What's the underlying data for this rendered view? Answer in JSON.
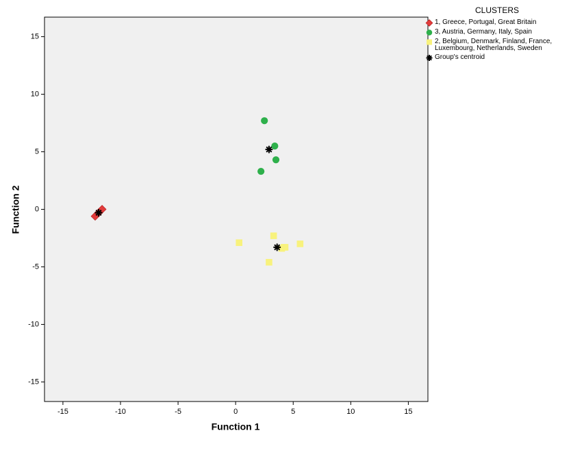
{
  "chart_data": {
    "type": "scatter",
    "xlabel": "Function 1",
    "ylabel": "Function 2",
    "legend_title": "CLUSTERS",
    "xlim": [
      -16.6,
      16.7
    ],
    "ylim": [
      -16.7,
      16.7
    ],
    "xticks": [
      -15,
      -10,
      -5,
      0,
      5,
      10,
      15
    ],
    "yticks": [
      -15,
      -10,
      -5,
      0,
      5,
      10,
      15
    ],
    "grid": false,
    "background": "#f0f0f0",
    "series": [
      {
        "name": "1, Greece, Portugal, Great Britain",
        "color": "#e23b3b",
        "marker": "diamond",
        "x": [
          -11.6,
          -12.2,
          -11.9
        ],
        "values": [
          0.0,
          -0.6,
          -0.3
        ]
      },
      {
        "name": "3, Austria, Germany, Italy, Spain",
        "color": "#2eb04b",
        "marker": "circle",
        "x": [
          2.5,
          3.4,
          3.5,
          2.2
        ],
        "values": [
          7.7,
          5.5,
          4.3,
          3.3
        ]
      },
      {
        "name": "2, Belgium, Denmark, Finland, France, Luxembourg, Netherlands, Sweden",
        "color": "#f8f27d",
        "marker": "square",
        "x": [
          0.3,
          3.3,
          4.2,
          5.6,
          2.9,
          4.0,
          4.3
        ],
        "values": [
          -2.9,
          -2.3,
          -3.3,
          -3.0,
          -4.6,
          -3.4,
          -3.3
        ]
      },
      {
        "name": "Group's centroid",
        "color": "#000000",
        "marker": "asterisk",
        "x": [
          -11.9,
          2.9,
          3.6
        ],
        "values": [
          -0.3,
          5.2,
          -3.3
        ]
      }
    ]
  }
}
